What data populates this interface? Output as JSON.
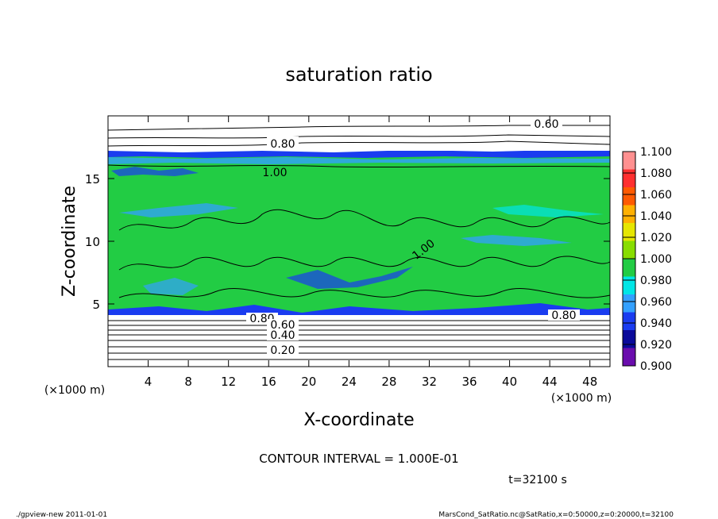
{
  "chart_data": {
    "type": "heatmap",
    "title": "saturation ratio",
    "xlabel": "X-coordinate",
    "ylabel": "Z-coordinate",
    "x_unit": "(×1000 m)",
    "z_unit": "(×1000 m)",
    "xlim": [
      0,
      50
    ],
    "zlim": [
      0,
      20
    ],
    "x_ticks": [
      "4",
      "8",
      "12",
      "16",
      "20",
      "24",
      "28",
      "32",
      "36",
      "40",
      "44",
      "48"
    ],
    "z_ticks": [
      "5",
      "10",
      "15"
    ],
    "x_tick_values": [
      4,
      8,
      12,
      16,
      20,
      24,
      28,
      32,
      36,
      40,
      44,
      48
    ],
    "z_tick_values": [
      5,
      10,
      15
    ],
    "colorbar": {
      "levels": [
        "0.900",
        "0.920",
        "0.940",
        "0.960",
        "0.980",
        "1.000",
        "1.020",
        "1.040",
        "1.060",
        "1.080",
        "1.100"
      ],
      "colors": [
        "#6a0dad",
        "#0a0a9a",
        "#1a3cf0",
        "#33a0ff",
        "#00e6e6",
        "#22cc44",
        "#88dd00",
        "#e6e600",
        "#ffb000",
        "#ff5a00",
        "#ff3030",
        "#ff9090"
      ]
    },
    "contour_labels": [
      "0.60",
      "0.80",
      "1.00",
      "1.00",
      "0.80",
      "0.60",
      "0.40",
      "0.20",
      "0.80"
    ],
    "contour_interval_text": "CONTOUR INTERVAL = 1.000E-01",
    "time_text": "t=32100 s",
    "grid": false
  },
  "footer": {
    "left": "./gpview-new   2011-01-01",
    "right": "MarsCond_SatRatio.nc@SatRatio,x=0:50000,z=0:20000,t=32100"
  }
}
